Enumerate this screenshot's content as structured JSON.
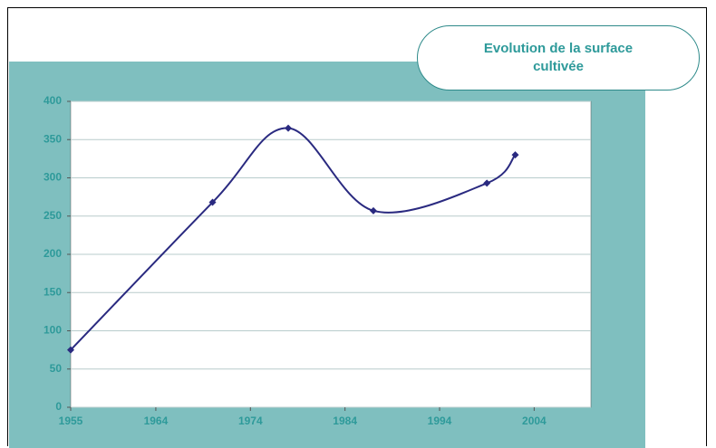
{
  "chart_data": {
    "type": "line",
    "title": "Evolution de la surface cultivée",
    "x": [
      1955,
      1970,
      1978,
      1987,
      1999,
      2002
    ],
    "series": [
      {
        "name": "Surface cultivée",
        "color": "#2a2a80",
        "values": [
          75,
          268,
          365,
          257,
          293,
          330
        ]
      }
    ],
    "xlim": [
      1955,
      2010
    ],
    "xticks": [
      1955,
      1964,
      1974,
      1984,
      1994,
      2004
    ],
    "ylim": [
      0,
      400
    ],
    "yticks": [
      0,
      50,
      100,
      150,
      200,
      250,
      300,
      350,
      400
    ],
    "grid": true
  }
}
